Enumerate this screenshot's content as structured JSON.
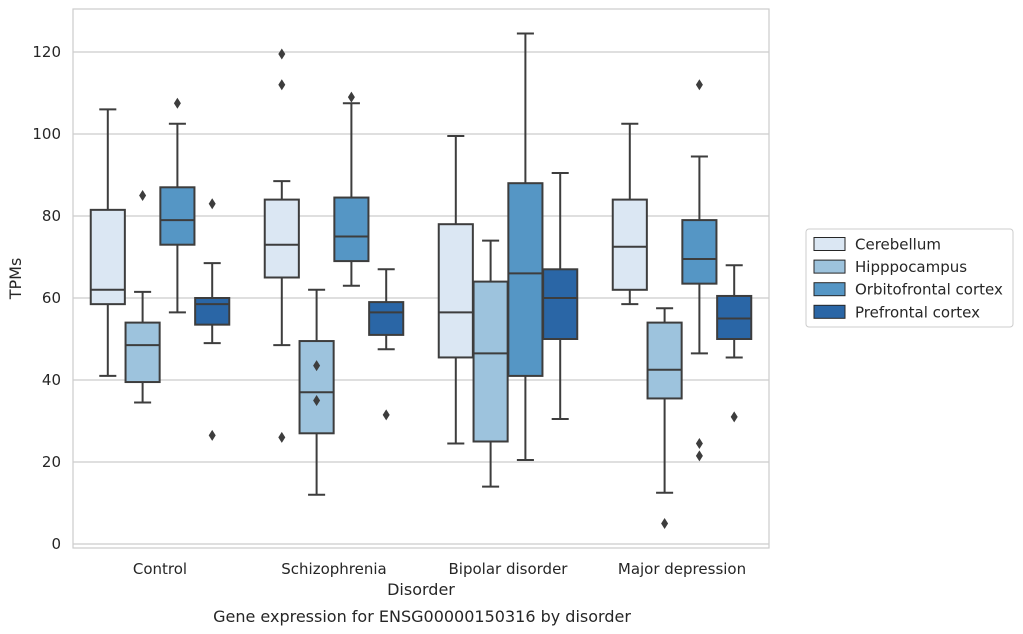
{
  "chart_data": {
    "type": "box",
    "title": "",
    "caption": "Gene expression for ENSG00000150316 by disorder",
    "xlabel": "Disorder",
    "ylabel": "TPMs",
    "ylim": [
      0,
      130
    ],
    "yticks": [
      0,
      20,
      40,
      60,
      80,
      100,
      120
    ],
    "grid": "horizontal",
    "legend_position": "right",
    "categories": [
      "Control",
      "Schizophrenia",
      "Bipolar disorder",
      "Major depression"
    ],
    "series": [
      {
        "name": "Cerebellum",
        "color": "#dbe7f3",
        "boxes": [
          {
            "whisker_low": 41,
            "q1": 58.5,
            "median": 62,
            "q3": 81.5,
            "whisker_high": 106,
            "outliers": []
          },
          {
            "whisker_low": 48.5,
            "q1": 65,
            "median": 73,
            "q3": 84,
            "whisker_high": 88.5,
            "outliers": [
              112,
              119.5,
              26
            ]
          },
          {
            "whisker_low": 24.5,
            "q1": 45.5,
            "median": 56.5,
            "q3": 78,
            "whisker_high": 99.5,
            "outliers": []
          },
          {
            "whisker_low": 58.5,
            "q1": 62,
            "median": 72.5,
            "q3": 84,
            "whisker_high": 102.5,
            "outliers": []
          }
        ]
      },
      {
        "name": "Hipppocampus",
        "color": "#9dc3dd",
        "boxes": [
          {
            "whisker_low": 34.5,
            "q1": 39.5,
            "median": 48.5,
            "q3": 54,
            "whisker_high": 61.5,
            "outliers": [
              85
            ]
          },
          {
            "whisker_low": 12,
            "q1": 27,
            "median": 37,
            "q3": 49.5,
            "whisker_high": 62,
            "outliers": [
              43.5,
              35
            ]
          },
          {
            "whisker_low": 14,
            "q1": 25,
            "median": 46.5,
            "q3": 64,
            "whisker_high": 74,
            "outliers": []
          },
          {
            "whisker_low": 12.5,
            "q1": 35.5,
            "median": 42.5,
            "q3": 54,
            "whisker_high": 57.5,
            "outliers": [
              5
            ]
          }
        ]
      },
      {
        "name": "Orbitofrontal cortex",
        "color": "#5596c5",
        "boxes": [
          {
            "whisker_low": 56.5,
            "q1": 73,
            "median": 79,
            "q3": 87,
            "whisker_high": 102.5,
            "outliers": [
              107.5
            ]
          },
          {
            "whisker_low": 63,
            "q1": 69,
            "median": 75,
            "q3": 84.5,
            "whisker_high": 107.5,
            "outliers": [
              109
            ]
          },
          {
            "whisker_low": 20.5,
            "q1": 41,
            "median": 66,
            "q3": 88,
            "whisker_high": 124.5,
            "outliers": []
          },
          {
            "whisker_low": 46.5,
            "q1": 63.5,
            "median": 69.5,
            "q3": 79,
            "whisker_high": 94.5,
            "outliers": [
              112,
              24.5,
              21.5
            ]
          }
        ]
      },
      {
        "name": "Prefrontal cortex",
        "color": "#2a66a6",
        "boxes": [
          {
            "whisker_low": 49,
            "q1": 53.5,
            "median": 58.5,
            "q3": 60,
            "whisker_high": 68.5,
            "outliers": [
              83,
              26.5
            ]
          },
          {
            "whisker_low": 47.5,
            "q1": 51,
            "median": 56.5,
            "q3": 59,
            "whisker_high": 67,
            "outliers": [
              31.5
            ]
          },
          {
            "whisker_low": 30.5,
            "q1": 50,
            "median": 60,
            "q3": 67,
            "whisker_high": 90.5,
            "outliers": []
          },
          {
            "whisker_low": 45.5,
            "q1": 50,
            "median": 55,
            "q3": 60.5,
            "whisker_high": 68,
            "outliers": [
              31
            ]
          }
        ]
      }
    ]
  }
}
